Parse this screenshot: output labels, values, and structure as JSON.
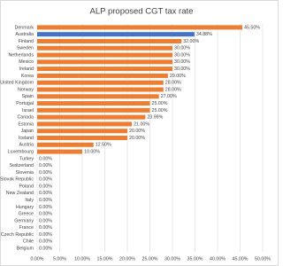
{
  "chart_data": {
    "type": "bar",
    "orientation": "horizontal",
    "title": "ALP proposed CGT tax rate",
    "categories": [
      "Denmark",
      "Australia",
      "Finland",
      "Sweden",
      "Netherlands",
      "Mexico",
      "Ireland",
      "Korea",
      "United Kingdom",
      "Norway",
      "Spain",
      "Portugal",
      "Israel",
      "Canada",
      "Estonia",
      "Japan",
      "Iceland",
      "Austria",
      "Luxembourg",
      "Turkey",
      "Switzerland",
      "Slovenia",
      "Slovak Republic",
      "Poland",
      "New Zealand",
      "Italy",
      "Hungary",
      "Greece",
      "Germany",
      "France",
      "Czech Republic",
      "Chile",
      "Belgium"
    ],
    "values": [
      45.5,
      34.88,
      32,
      30,
      30,
      30,
      30,
      29,
      28,
      28,
      27,
      25,
      25,
      23.99,
      21,
      20,
      20,
      12.5,
      10,
      0,
      0,
      0,
      0,
      0,
      0,
      0,
      0,
      0,
      0,
      0,
      0,
      0,
      0
    ],
    "value_labels": [
      "45.50%",
      "34.88%",
      "32.00%",
      "30.00%",
      "30.00%",
      "30.00%",
      "30.00%",
      "29.00%",
      "28.00%",
      "28.00%",
      "27.00%",
      "25.00%",
      "25.00%",
      "23.99%",
      "21.00%",
      "20.00%",
      "20.00%",
      "12.50%",
      "10.00%",
      "0.00%",
      "0.00%",
      "0.00%",
      "0.00%",
      "0.00%",
      "0.00%",
      "0.00%",
      "0.00%",
      "0.00%",
      "0.00%",
      "0.00%",
      "0.00%",
      "0.00%",
      "0.00%"
    ],
    "colors": [
      "#ed7d31",
      "#4472c4",
      "#ed7d31",
      "#ed7d31",
      "#ed7d31",
      "#ed7d31",
      "#ed7d31",
      "#ed7d31",
      "#ed7d31",
      "#ed7d31",
      "#ed7d31",
      "#ed7d31",
      "#ed7d31",
      "#ed7d31",
      "#ed7d31",
      "#ed7d31",
      "#ed7d31",
      "#ed7d31",
      "#ed7d31",
      "#ed7d31",
      "#ed7d31",
      "#ed7d31",
      "#ed7d31",
      "#ed7d31",
      "#ed7d31",
      "#ed7d31",
      "#ed7d31",
      "#ed7d31",
      "#ed7d31",
      "#ed7d31",
      "#ed7d31",
      "#ed7d31",
      "#ed7d31"
    ],
    "xlim": [
      0,
      50
    ],
    "xticks": [
      {
        "value": 0,
        "label": "0.00%"
      },
      {
        "value": 5,
        "label": "5.00%"
      },
      {
        "value": 10,
        "label": "10.00%"
      },
      {
        "value": 15,
        "label": "15.00%"
      },
      {
        "value": 20,
        "label": "20.00%"
      },
      {
        "value": 25,
        "label": "25.00%"
      },
      {
        "value": 30,
        "label": "30.00%"
      },
      {
        "value": 35,
        "label": "35.00%"
      },
      {
        "value": 40,
        "label": "40.00%"
      },
      {
        "value": 45,
        "label": "45.00%"
      },
      {
        "value": 50,
        "label": "50.00%"
      }
    ],
    "grid": true
  }
}
